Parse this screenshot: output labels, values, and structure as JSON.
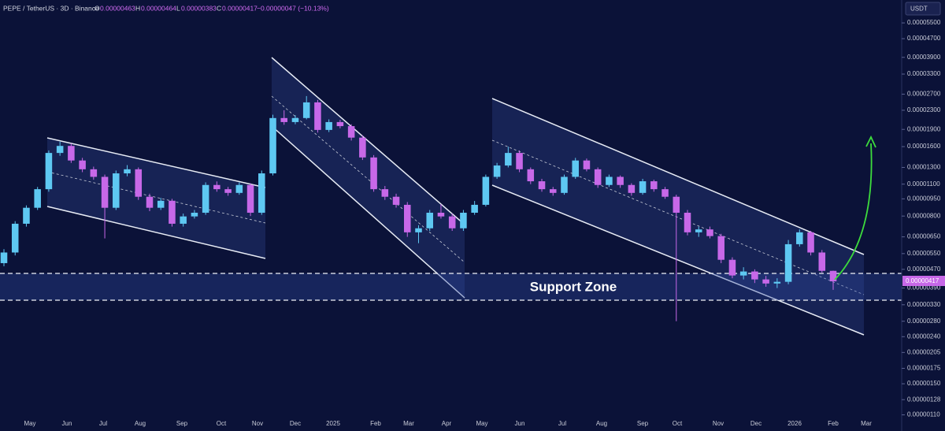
{
  "chart_data": {
    "type": "candlestick",
    "header": {
      "symbol": "PEPE / TetherUS · 3D · Binance",
      "open_label": "O",
      "open": "0.00000463",
      "high_label": "H",
      "high": "0.00000464",
      "low_label": "L",
      "low": "0.00000383",
      "close_label": "C",
      "close": "0.00000417",
      "change": "−0.00000047 (−10.13%)"
    },
    "currency": "USDT",
    "annotation": "Support Zone",
    "up_color": "#5ec8f2",
    "down_color": "#c768e8",
    "log_scale": true,
    "ylim": [
      1.07e-06,
      6.39e-05
    ],
    "yticks": [
      {
        "value": 5.5e-05,
        "label": "0.00005500"
      },
      {
        "value": 4.7e-05,
        "label": "0.00004700"
      },
      {
        "value": 3.9e-05,
        "label": "0.00003900"
      },
      {
        "value": 3.3e-05,
        "label": "0.00003300"
      },
      {
        "value": 2.7e-05,
        "label": "0.00002700"
      },
      {
        "value": 2.3e-05,
        "label": "0.00002300"
      },
      {
        "value": 1.9e-05,
        "label": "0.00001900"
      },
      {
        "value": 1.6e-05,
        "label": "0.00001600"
      },
      {
        "value": 1.3e-05,
        "label": "0.00001300"
      },
      {
        "value": 1.1e-05,
        "label": "0.00001100"
      },
      {
        "value": 9.5e-06,
        "label": "0.00000950"
      },
      {
        "value": 8e-06,
        "label": "0.00000800"
      },
      {
        "value": 6.5e-06,
        "label": "0.00000650"
      },
      {
        "value": 5.5e-06,
        "label": "0.00000550"
      },
      {
        "value": 4.7e-06,
        "label": "0.00000470"
      },
      {
        "value": 3.9e-06,
        "label": "0.00000390"
      },
      {
        "value": 3.3e-06,
        "label": "0.00000330"
      },
      {
        "value": 2.8e-06,
        "label": "0.00000280"
      },
      {
        "value": 2.4e-06,
        "label": "0.00000240"
      },
      {
        "value": 2.05e-06,
        "label": "0.00000205"
      },
      {
        "value": 1.75e-06,
        "label": "0.00000175"
      },
      {
        "value": 1.5e-06,
        "label": "0.00000150"
      },
      {
        "value": 1.28e-06,
        "label": "0.00000128"
      },
      {
        "value": 1.1e-06,
        "label": "0.00000110"
      }
    ],
    "categories": [
      "May",
      "Jun",
      "Jul",
      "Aug",
      "Sep",
      "Oct",
      "Nov",
      "Dec",
      "2025",
      "Feb",
      "Mar",
      "Apr",
      "May",
      "Jun",
      "Jul",
      "Aug",
      "Sep",
      "Oct",
      "Nov",
      "Dec",
      "2026",
      "Feb",
      "Mar"
    ],
    "candles": [
      [
        5e-06,
        5.75e-06,
        4.85e-06,
        5.56e-06
      ],
      [
        5.56e-06,
        7.6e-06,
        5.4e-06,
        7.41e-06
      ],
      [
        7.41e-06,
        8.9e-06,
        7.2e-06,
        8.69e-06
      ],
      [
        8.69e-06,
        1.07e-05,
        8.5e-06,
        1.046e-05
      ],
      [
        1.046e-05,
        1.54e-05,
        1.02e-05,
        1.502e-05
      ],
      [
        1.502e-05,
        1.68e-05,
        1.46e-05,
        1.611e-05
      ],
      [
        1.611e-05,
        1.65e-05,
        1.36e-05,
        1.393e-05
      ],
      [
        1.393e-05,
        1.43e-05,
        1.24e-05,
        1.276e-05
      ],
      [
        1.276e-05,
        1.31e-05,
        1.15e-05,
        1.183e-05
      ],
      [
        1.183e-05,
        1.21e-05,
        6.4e-06,
        8.69e-06
      ],
      [
        8.69e-06,
        1.26e-05,
        8.5e-06,
        1.225e-05
      ],
      [
        1.225e-05,
        1.33e-05,
        1.19e-05,
        1.276e-05
      ],
      [
        1.276e-05,
        1.3e-05,
        9.4e-06,
        9.7e-06
      ],
      [
        9.7e-06,
        1e-05,
        8.4e-06,
        8.69e-06
      ],
      [
        8.69e-06,
        9.6e-06,
        8.5e-06,
        9.32e-06
      ],
      [
        9.32e-06,
        9.5e-06,
        7.2e-06,
        7.41e-06
      ],
      [
        7.41e-06,
        8.2e-06,
        7.2e-06,
        7.97e-06
      ],
      [
        7.97e-06,
        8.5e-06,
        7.8e-06,
        8.27e-06
      ],
      [
        8.27e-06,
        1.12e-05,
        8.1e-06,
        1.091e-05
      ],
      [
        1.091e-05,
        1.13e-05,
        1.02e-05,
        1.046e-05
      ],
      [
        1.046e-05,
        1.07e-05,
        9.8e-06,
        1.008e-05
      ],
      [
        1.008e-05,
        1.12e-05,
        9.9e-06,
        1.091e-05
      ],
      [
        1.091e-05,
        1.11e-05,
        8e-06,
        8.27e-06
      ],
      [
        8.27e-06,
        1.26e-05,
        8.1e-06,
        1.225e-05
      ],
      [
        1.225e-05,
        2.2e-05,
        1.2e-05,
        2.128e-05
      ],
      [
        2.128e-05,
        2.3e-05,
        1.99e-05,
        2.044e-05
      ],
      [
        2.044e-05,
        2.19e-05,
        2e-05,
        2.128e-05
      ],
      [
        2.128e-05,
        2.65e-05,
        2.1e-05,
        2.488e-05
      ],
      [
        2.488e-05,
        2.55e-05,
        1.84e-05,
        1.89e-05
      ],
      [
        1.89e-05,
        2.1e-05,
        1.85e-05,
        2.044e-05
      ],
      [
        2.044e-05,
        2.09e-05,
        1.92e-05,
        1.963e-05
      ],
      [
        1.963e-05,
        2e-05,
        1.7e-05,
        1.75e-05
      ],
      [
        1.75e-05,
        1.79e-05,
        1.4e-05,
        1.436e-05
      ],
      [
        1.436e-05,
        1.47e-05,
        1.02e-05,
        1.046e-05
      ],
      [
        1.046e-05,
        1.08e-05,
        9.4e-06,
        9.7e-06
      ],
      [
        9.7e-06,
        1e-05,
        8.7e-06,
        8.95e-06
      ],
      [
        8.95e-06,
        9.2e-06,
        6.5e-06,
        6.8e-06
      ],
      [
        6.8e-06,
        7.3e-06,
        6.1e-06,
        7.08e-06
      ],
      [
        7.08e-06,
        8.5e-06,
        6.9e-06,
        8.27e-06
      ],
      [
        8.27e-06,
        9e-06,
        7.8e-06,
        7.97e-06
      ],
      [
        7.97e-06,
        8.2e-06,
        6.9e-06,
        7.08e-06
      ],
      [
        7.08e-06,
        8.5e-06,
        6.9e-06,
        8.27e-06
      ],
      [
        8.27e-06,
        9.3e-06,
        8.1e-06,
        8.95e-06
      ],
      [
        8.95e-06,
        1.21e-05,
        8.8e-06,
        1.183e-05
      ],
      [
        1.183e-05,
        1.36e-05,
        1.16e-05,
        1.325e-05
      ],
      [
        1.325e-05,
        1.6e-05,
        1.3e-05,
        1.502e-05
      ],
      [
        1.502e-05,
        1.54e-05,
        1.24e-05,
        1.276e-05
      ],
      [
        1.276e-05,
        1.3e-05,
        1.1e-05,
        1.132e-05
      ],
      [
        1.132e-05,
        1.16e-05,
        1.02e-05,
        1.046e-05
      ],
      [
        1.046e-05,
        1.07e-05,
        9.8e-06,
        1.008e-05
      ],
      [
        1.008e-05,
        1.21e-05,
        9.9e-06,
        1.183e-05
      ],
      [
        1.183e-05,
        1.43e-05,
        1.16e-05,
        1.393e-05
      ],
      [
        1.393e-05,
        1.42e-05,
        1.25e-05,
        1.276e-05
      ],
      [
        1.276e-05,
        1.3e-05,
        1.06e-05,
        1.091e-05
      ],
      [
        1.091e-05,
        1.21e-05,
        1.07e-05,
        1.183e-05
      ],
      [
        1.183e-05,
        1.2e-05,
        1.06e-05,
        1.091e-05
      ],
      [
        1.091e-05,
        1.11e-05,
        9.8e-06,
        1.008e-05
      ],
      [
        1.008e-05,
        1.16e-05,
        9.9e-06,
        1.132e-05
      ],
      [
        1.132e-05,
        1.15e-05,
        1.02e-05,
        1.046e-05
      ],
      [
        1.046e-05,
        1.07e-05,
        9.5e-06,
        9.7e-06
      ],
      [
        9.7e-06,
        9.9e-06,
        2.8e-06,
        8.27e-06
      ],
      [
        8.27e-06,
        8.5e-06,
        6.6e-06,
        6.8e-06
      ],
      [
        6.8e-06,
        7.2e-06,
        6.5e-06,
        7e-06
      ],
      [
        7e-06,
        7.2e-06,
        6.4e-06,
        6.55e-06
      ],
      [
        6.55e-06,
        6.7e-06,
        5e-06,
        5.17e-06
      ],
      [
        5.17e-06,
        5.3e-06,
        4.3e-06,
        4.42e-06
      ],
      [
        4.42e-06,
        4.8e-06,
        4.25e-06,
        4.6e-06
      ],
      [
        4.6e-06,
        4.7e-06,
        4.1e-06,
        4.25e-06
      ],
      [
        4.25e-06,
        4.4e-06,
        3.95e-06,
        4.08e-06
      ],
      [
        4.08e-06,
        4.3e-06,
        3.9e-06,
        4.15e-06
      ],
      [
        4.15e-06,
        6.3e-06,
        4.05e-06,
        6.04e-06
      ],
      [
        6.04e-06,
        7e-06,
        5.9e-06,
        6.8e-06
      ],
      [
        6.8e-06,
        6.9e-06,
        5.4e-06,
        5.56e-06
      ],
      [
        5.56e-06,
        5.7e-06,
        4.55e-06,
        4.63e-06
      ],
      [
        4.63e-06,
        4.64e-06,
        3.83e-06,
        4.17e-06
      ]
    ]
  }
}
